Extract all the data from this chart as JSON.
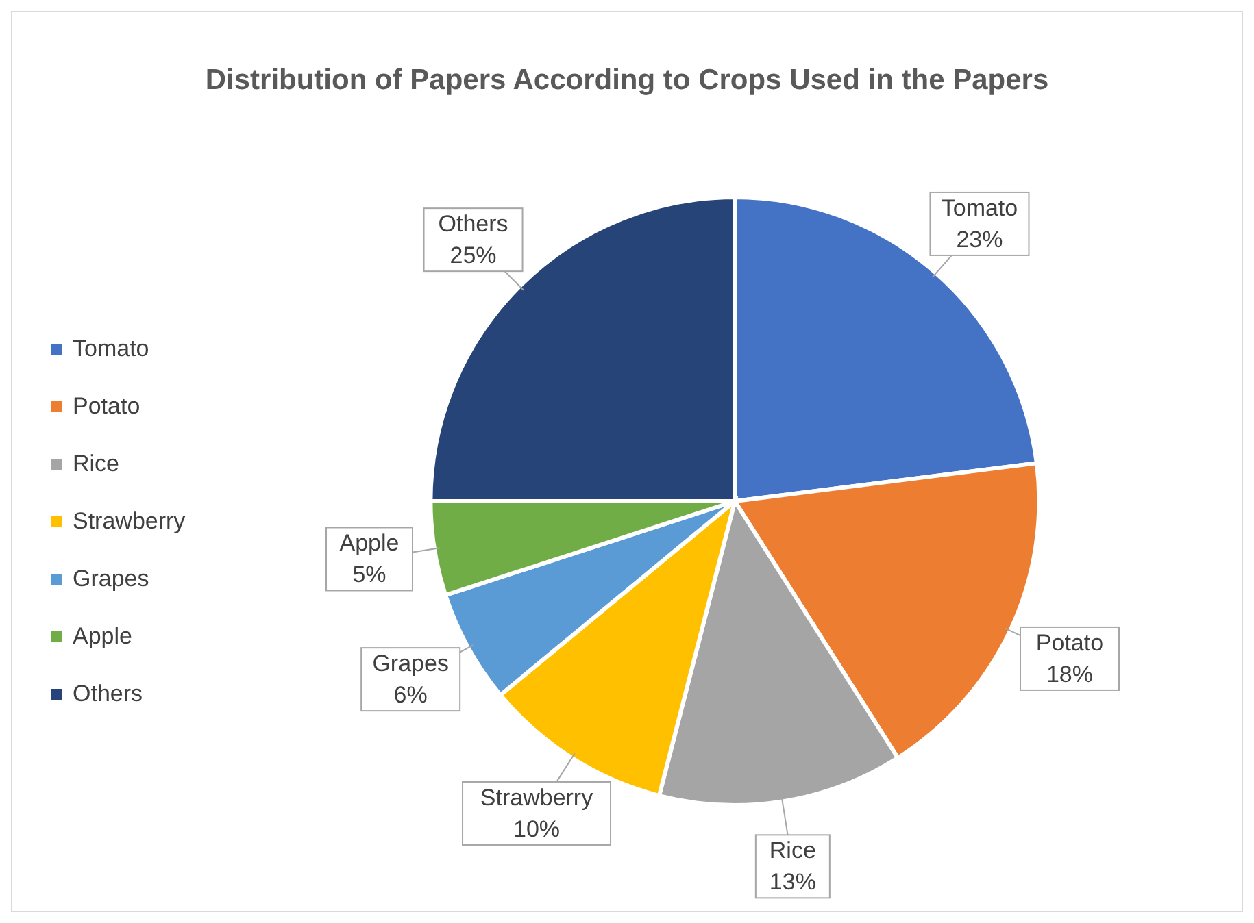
{
  "chart_data": {
    "type": "pie",
    "title": "Distribution of Papers According to Crops Used in the Papers",
    "categories": [
      "Tomato",
      "Potato",
      "Rice",
      "Strawberry",
      "Grapes",
      "Apple",
      "Others"
    ],
    "values": [
      23,
      18,
      13,
      10,
      6,
      5,
      25
    ],
    "value_labels": [
      "23%",
      "18%",
      "13%",
      "10%",
      "6%",
      "5%",
      "25%"
    ],
    "colors": [
      "#4472c4",
      "#ed7d31",
      "#a5a5a5",
      "#ffc000",
      "#5b9bd5",
      "#70ad47",
      "#264478"
    ],
    "legend": "left"
  }
}
